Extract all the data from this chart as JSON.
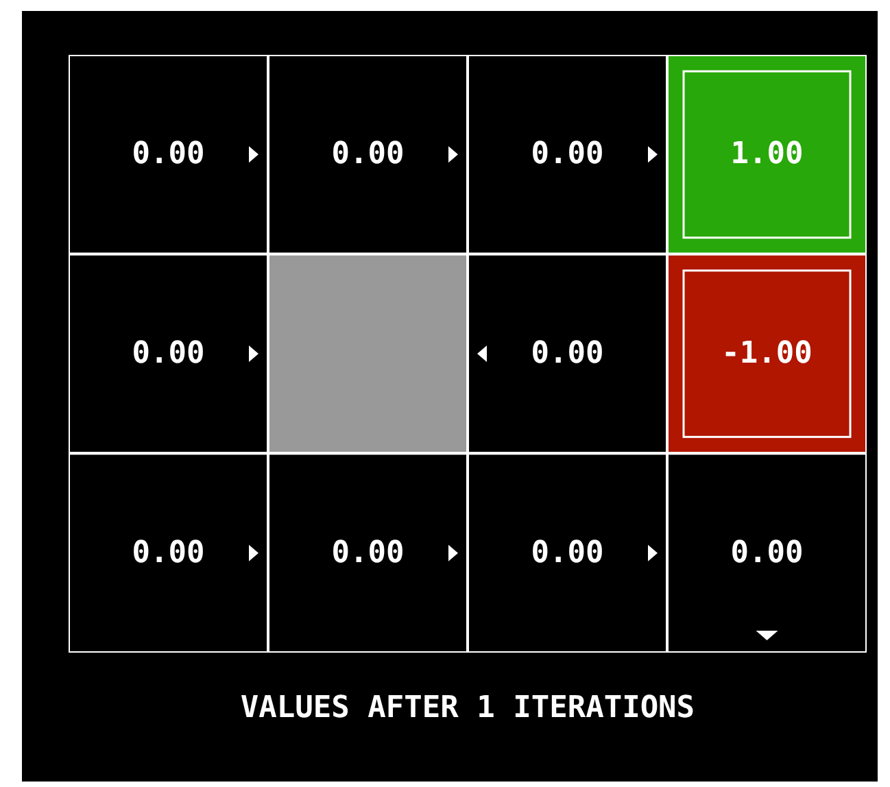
{
  "chart_data": {
    "type": "heatmap",
    "title": "VALUES AFTER 1 ITERATIONS",
    "categories": [
      null,
      null,
      null,
      null
    ],
    "y_categories": [
      null,
      null,
      null
    ],
    "cells": [
      [
        0,
        0,
        0,
        1
      ],
      [
        0,
        null,
        0,
        -1
      ],
      [
        0,
        0,
        0,
        0
      ]
    ],
    "cell_labels": [
      [
        "0.00",
        "0.00",
        "0.00",
        "1.00"
      ],
      [
        "0.00",
        null,
        "0.00",
        "-1.00"
      ],
      [
        "0.00",
        "0.00",
        "0.00",
        "0.00"
      ]
    ]
  }
}
